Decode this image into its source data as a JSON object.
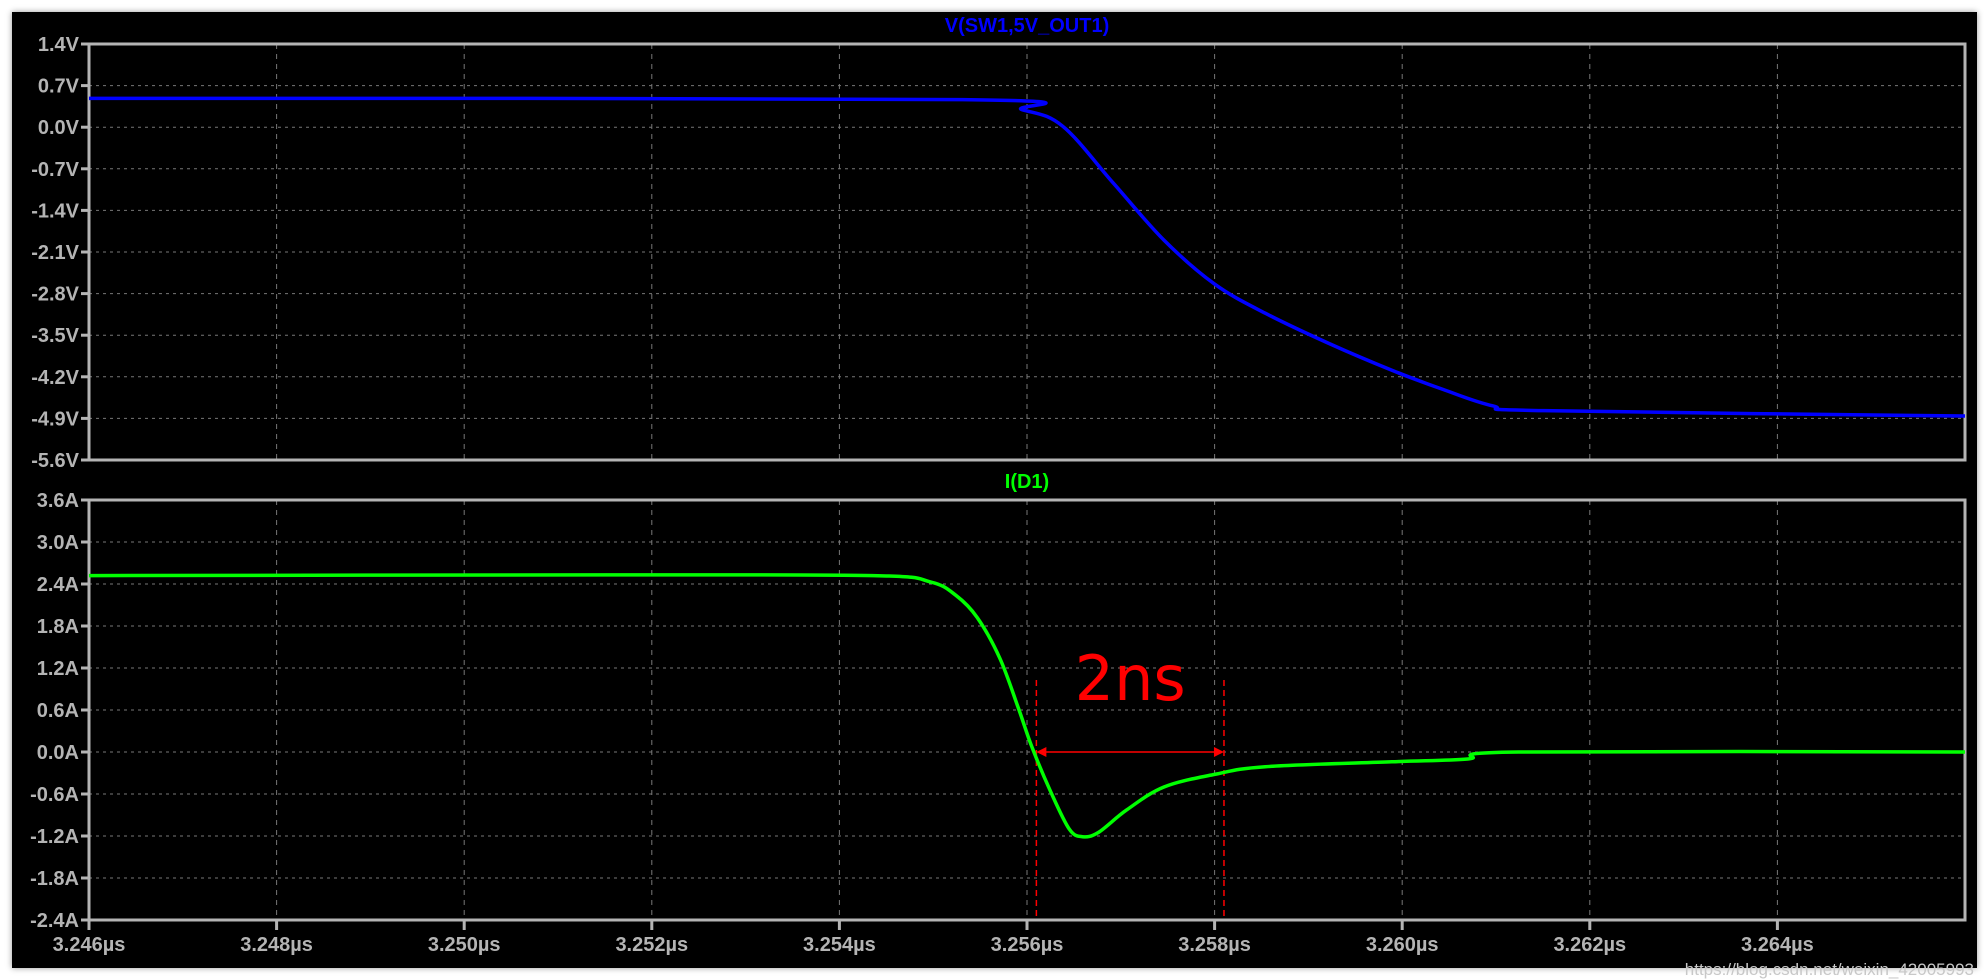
{
  "chart_data": [
    {
      "type": "line",
      "title": "V(SW1,5V_OUT1)",
      "color": "#0000ff",
      "xlim": [
        3.246,
        3.266
      ],
      "ylim": [
        -5.6,
        1.4
      ],
      "yticks": [
        1.4,
        0.7,
        0.0,
        -0.7,
        -1.4,
        -2.1,
        -2.8,
        -3.5,
        -4.2,
        -4.9,
        -5.6
      ],
      "ytick_labels": [
        "1.4V",
        "0.7V",
        "0.0V",
        "-0.7V",
        "-1.4V",
        "-2.1V",
        "-2.8V",
        "-3.5V",
        "-4.2V",
        "-4.9V",
        "-5.6V"
      ],
      "grid": true,
      "x": [
        3.246,
        3.25531,
        3.25595,
        3.25638,
        3.25692,
        3.25746,
        3.258,
        3.25854,
        3.25922,
        3.25989,
        3.26043,
        3.26097,
        3.26151,
        3.266
      ],
      "y": [
        0.485,
        0.464,
        0.293,
        0.017,
        -0.94,
        -1.9,
        -2.64,
        -3.13,
        -3.64,
        -4.09,
        -4.41,
        -4.69,
        -4.77,
        -4.86
      ]
    },
    {
      "type": "line",
      "title": "I(D1)",
      "color": "#00ff00",
      "xlim": [
        3.246,
        3.266
      ],
      "ylim": [
        -2.4,
        3.6
      ],
      "yticks": [
        3.6,
        3.0,
        2.4,
        1.8,
        1.2,
        0.6,
        0.0,
        -0.6,
        -1.2,
        -1.8,
        -2.4
      ],
      "ytick_labels": [
        "3.6A",
        "3.0A",
        "2.4A",
        "1.8A",
        "1.2A",
        "0.6A",
        "0.0A",
        "-0.6A",
        "-1.2A",
        "-1.8A",
        "-2.4A"
      ],
      "xticks": [
        3.246,
        3.248,
        3.25,
        3.252,
        3.254,
        3.256,
        3.258,
        3.26,
        3.262,
        3.264
      ],
      "xtick_labels": [
        "3.246µs",
        "3.248µs",
        "3.250µs",
        "3.252µs",
        "3.254µs",
        "3.256µs",
        "3.258µs",
        "3.260µs",
        "3.262µs",
        "3.264µs"
      ],
      "grid": true,
      "x": [
        3.246,
        3.25153,
        3.25436,
        3.25497,
        3.25524,
        3.25547,
        3.25571,
        3.25591,
        3.25605,
        3.25625,
        3.25645,
        3.25659,
        3.25676,
        3.25706,
        3.25746,
        3.258,
        3.25854,
        3.25989,
        3.2607,
        3.26124,
        3.266
      ],
      "y": [
        2.52,
        2.53,
        2.52,
        2.43,
        2.24,
        1.92,
        1.34,
        0.62,
        0.08,
        -0.56,
        -1.1,
        -1.21,
        -1.15,
        -0.83,
        -0.5,
        -0.32,
        -0.21,
        -0.14,
        -0.1,
        0.0,
        0.0
      ],
      "annotation": {
        "text": "2ns",
        "color": "#ff0000",
        "x_start": 3.2561,
        "x_end": 3.2581,
        "y": 0.0
      }
    }
  ],
  "watermark": "https://blog.csdn.net/weixin_42005993"
}
